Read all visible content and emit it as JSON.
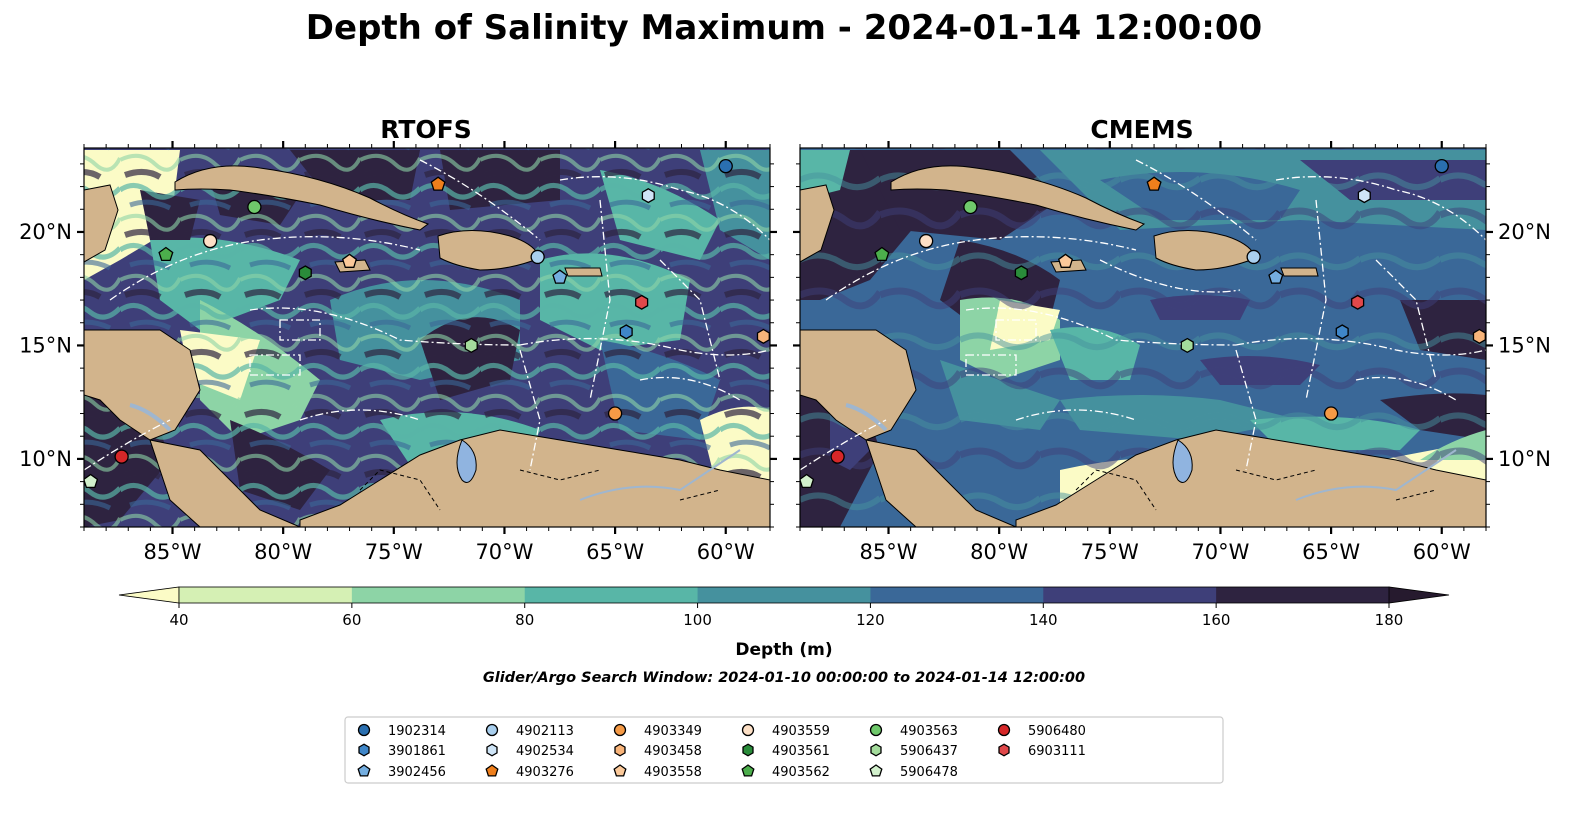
{
  "figure": {
    "title": "Depth of Salinity Maximum - 2024-01-14 12:00:00",
    "subtitle": "Glider/Argo Search Window: 2024-01-10 00:00:00 to 2024-01-14 12:00:00"
  },
  "map_extent": {
    "lon": [
      -89,
      -58
    ],
    "lat": [
      7,
      23.7
    ]
  },
  "panels": [
    {
      "title": "RTOFS",
      "lat_labels_side": "left"
    },
    {
      "title": "CMEMS",
      "lat_labels_side": "right"
    }
  ],
  "x_ticks": [
    {
      "lon": -85,
      "label": "85°W"
    },
    {
      "lon": -80,
      "label": "80°W"
    },
    {
      "lon": -75,
      "label": "75°W"
    },
    {
      "lon": -70,
      "label": "70°W"
    },
    {
      "lon": -65,
      "label": "65°W"
    },
    {
      "lon": -60,
      "label": "60°W"
    }
  ],
  "y_ticks": [
    {
      "lat": 10,
      "label": "10°N"
    },
    {
      "lat": 15,
      "label": "15°N"
    },
    {
      "lat": 20,
      "label": "20°N"
    }
  ],
  "colorbar": {
    "label": "Depth (m)",
    "levels": [
      40,
      60,
      80,
      100,
      120,
      140,
      160,
      180
    ],
    "tick_labels": [
      "40",
      "60",
      "80",
      "100",
      "120",
      "140",
      "160",
      "180"
    ],
    "colors": [
      "#fbfbc6",
      "#d5f0b4",
      "#8dd4a6",
      "#58b6a7",
      "#45919e",
      "#3a6898",
      "#3e3f79",
      "#2e2340",
      "#261a2e"
    ],
    "extend": "both"
  },
  "land_colors": {
    "land": "#d2b48c",
    "lake": "#90b4e0",
    "river": "#9fb6cf",
    "contour": "#ffffff"
  },
  "floats": [
    {
      "id": "1902314",
      "marker": "circle",
      "color": "#2a6fb0",
      "lon": -60.0,
      "lat": 22.9
    },
    {
      "id": "3901861",
      "marker": "hexagon",
      "color": "#3f86c8",
      "lon": -64.5,
      "lat": 15.6
    },
    {
      "id": "3902456",
      "marker": "pentagon",
      "color": "#74aee0",
      "lon": -67.5,
      "lat": 18.0
    },
    {
      "id": "4902113",
      "marker": "circle",
      "color": "#a9cfee",
      "lon": -68.5,
      "lat": 18.9
    },
    {
      "id": "4902534",
      "marker": "hexagon",
      "color": "#cfe5f7",
      "lon": -63.5,
      "lat": 21.6
    },
    {
      "id": "4903276",
      "marker": "pentagon",
      "color": "#ef7f1c",
      "lon": -73.0,
      "lat": 22.1
    },
    {
      "id": "4903349",
      "marker": "circle",
      "color": "#f59a46",
      "lon": -65.0,
      "lat": 12.0
    },
    {
      "id": "4903458",
      "marker": "hexagon",
      "color": "#f8b47a",
      "lon": -58.3,
      "lat": 15.4
    },
    {
      "id": "4903558",
      "marker": "pentagon",
      "color": "#fbc99a",
      "lon": -77.0,
      "lat": 18.7
    },
    {
      "id": "4903559",
      "marker": "circle",
      "color": "#fde0c6",
      "lon": -83.3,
      "lat": 19.6
    },
    {
      "id": "4903561",
      "marker": "hexagon",
      "color": "#2a8c3a",
      "lon": -79.0,
      "lat": 18.2
    },
    {
      "id": "4903562",
      "marker": "pentagon",
      "color": "#4cae4c",
      "lon": -85.3,
      "lat": 19.0
    },
    {
      "id": "4903563",
      "marker": "circle",
      "color": "#6fc96b",
      "lon": -81.3,
      "lat": 21.1
    },
    {
      "id": "5906437",
      "marker": "hexagon",
      "color": "#a4dc9c",
      "lon": -71.5,
      "lat": 15.0
    },
    {
      "id": "5906478",
      "marker": "pentagon",
      "color": "#d2f0cc",
      "lon": -88.7,
      "lat": 9.0
    },
    {
      "id": "5906480",
      "marker": "circle",
      "color": "#d62728",
      "lon": -87.3,
      "lat": 10.1
    },
    {
      "id": "6903111",
      "marker": "hexagon",
      "color": "#e0484a",
      "lon": -63.8,
      "lat": 16.9
    }
  ]
}
